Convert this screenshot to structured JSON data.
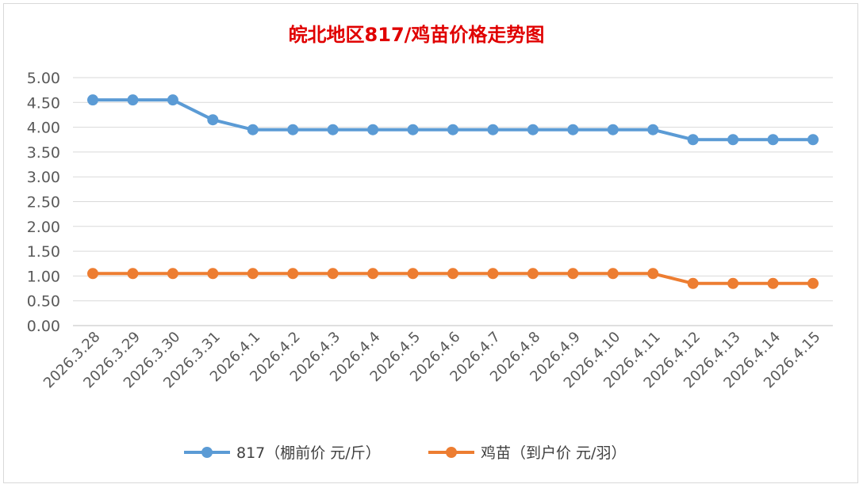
{
  "chart_data": {
    "type": "line",
    "title": "皖北地区817/鸡苗价格走势图",
    "xlabel": "",
    "ylabel": "",
    "ylim": [
      0,
      5
    ],
    "yticks": [
      "0.00",
      "0.50",
      "1.00",
      "1.50",
      "2.00",
      "2.50",
      "3.00",
      "3.50",
      "4.00",
      "4.50",
      "5.00"
    ],
    "grid": true,
    "legend_position": "bottom",
    "categories": [
      "2026.3.28",
      "2026.3.29",
      "2026.3.30",
      "2026.3.31",
      "2026.4.1",
      "2026.4.2",
      "2026.4.3",
      "2026.4.4",
      "2026.4.5",
      "2026.4.6",
      "2026.4.7",
      "2026.4.8",
      "2026.4.9",
      "2026.4.10",
      "2026.4.11",
      "2026.4.12",
      "2026.4.13",
      "2026.4.14",
      "2026.4.15"
    ],
    "series": [
      {
        "name": "817（棚前价 元/斤）",
        "color": "#5b9bd5",
        "values": [
          4.55,
          4.55,
          4.55,
          4.15,
          3.95,
          3.95,
          3.95,
          3.95,
          3.95,
          3.95,
          3.95,
          3.95,
          3.95,
          3.95,
          3.95,
          3.75,
          3.75,
          3.75,
          3.75
        ]
      },
      {
        "name": "鸡苗（到户价 元/羽）",
        "color": "#ed7d31",
        "values": [
          1.05,
          1.05,
          1.05,
          1.05,
          1.05,
          1.05,
          1.05,
          1.05,
          1.05,
          1.05,
          1.05,
          1.05,
          1.05,
          1.05,
          1.05,
          0.85,
          0.85,
          0.85,
          0.85
        ]
      }
    ]
  }
}
